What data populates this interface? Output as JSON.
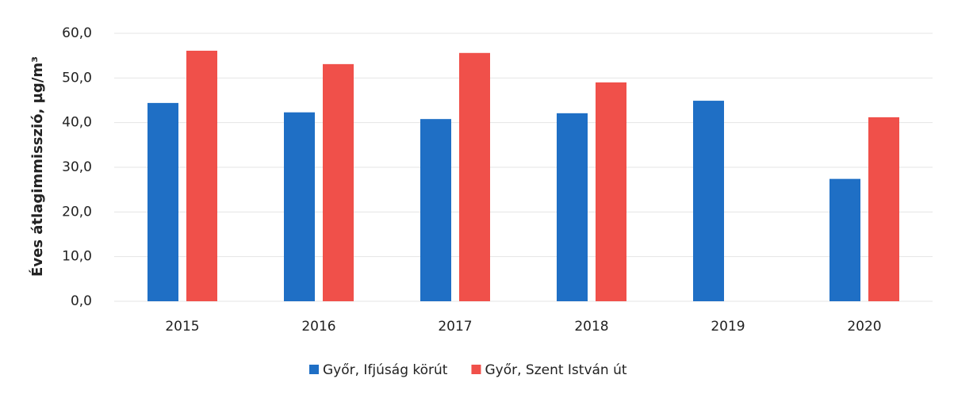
{
  "chart_data": {
    "type": "bar",
    "ylabel": "Éves átlagimmisszió, µg/m³",
    "categories": [
      "2015",
      "2016",
      "2017",
      "2018",
      "2019",
      "2020"
    ],
    "series": [
      {
        "name": "Győr, Ifjúság körút",
        "color": "#1f6fc5",
        "values": [
          44.4,
          42.3,
          40.8,
          42.1,
          44.9,
          27.4
        ]
      },
      {
        "name": "Győr, Szent István út",
        "color": "#f0504a",
        "values": [
          56.1,
          53.1,
          55.6,
          49.0,
          null,
          41.2
        ]
      }
    ],
    "ylim": [
      0,
      60
    ],
    "yticks": [
      {
        "value": 0,
        "label": "0,0"
      },
      {
        "value": 10,
        "label": "10,0"
      },
      {
        "value": 20,
        "label": "20,0"
      },
      {
        "value": 30,
        "label": "30,0"
      },
      {
        "value": 40,
        "label": "40,0"
      },
      {
        "value": 50,
        "label": "50,0"
      },
      {
        "value": 60,
        "label": "60,0"
      }
    ],
    "grid": true,
    "legend": "bottom"
  }
}
